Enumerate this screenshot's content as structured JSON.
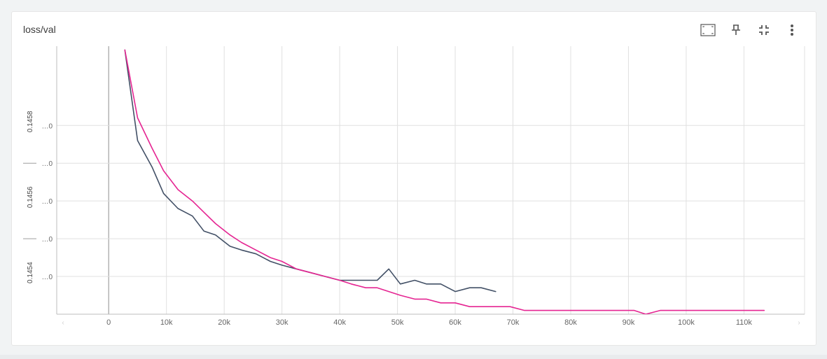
{
  "card": {
    "title": "loss/val",
    "tools": [
      "fit-domain-icon",
      "pin-icon",
      "collapse-icon",
      "more-vert-icon"
    ]
  },
  "colors": {
    "series_dark": "#425066",
    "series_pink": "#e52592",
    "grid": "#e0e0e0",
    "axis_text": "#666666"
  },
  "chart_data": {
    "type": "line",
    "title": "loss/val",
    "x_ticks": [
      "0",
      "10k",
      "20k",
      "30k",
      "40k",
      "50k",
      "60k",
      "70k",
      "80k",
      "90k",
      "100k",
      "110k"
    ],
    "x_tick_values": [
      0,
      10000,
      20000,
      30000,
      40000,
      50000,
      60000,
      70000,
      80000,
      90000,
      100000,
      110000
    ],
    "xlim": [
      -9000,
      120500
    ],
    "ylim": [
      0.14528,
      0.14599
    ],
    "y_ticks": [
      {
        "value": 0.14538,
        "label": "...0"
      },
      {
        "value": 0.14548,
        "label": "...0"
      },
      {
        "value": 0.14558,
        "label": "...0"
      },
      {
        "value": 0.14568,
        "label": "...0"
      },
      {
        "value": 0.14578,
        "label": "...0"
      }
    ],
    "y_major_labels": [
      {
        "value": 0.14539,
        "label": "0.1454"
      },
      {
        "value": 0.14559,
        "label": "0.1456"
      },
      {
        "value": 0.14579,
        "label": "0.1458"
      }
    ],
    "grid": true,
    "series": [
      {
        "color": "#425066",
        "x": [
          2800,
          5000,
          7500,
          9500,
          12000,
          14500,
          16500,
          18500,
          21000,
          23000,
          25500,
          28000,
          30000,
          32500,
          35000,
          37500,
          40000,
          42000,
          44500,
          46500,
          48500,
          50500,
          53000,
          55000,
          57500,
          60000,
          62500,
          64500,
          67000
        ],
        "y": [
          0.14598,
          0.14574,
          0.14567,
          0.1456,
          0.14556,
          0.14554,
          0.1455,
          0.14549,
          0.14546,
          0.14545,
          0.14544,
          0.14542,
          0.14541,
          0.1454,
          0.14539,
          0.14538,
          0.14537,
          0.14537,
          0.14537,
          0.14537,
          0.1454,
          0.14536,
          0.14537,
          0.14536,
          0.14536,
          0.14534,
          0.14535,
          0.14535,
          0.14534
        ]
      },
      {
        "color": "#e52592",
        "x": [
          2800,
          5000,
          7500,
          9500,
          12000,
          14500,
          16500,
          18500,
          21000,
          23000,
          25500,
          28000,
          30000,
          32500,
          35000,
          37500,
          40000,
          42000,
          44500,
          46500,
          48500,
          50500,
          53000,
          55000,
          57500,
          60000,
          62500,
          64500,
          67000,
          69500,
          72000,
          74500,
          76500,
          79000,
          81500,
          84000,
          86500,
          88500,
          91000,
          93000,
          95500,
          97500,
          100000,
          102000,
          104500,
          106500,
          109000,
          111000,
          113500
        ],
        "y": [
          0.14598,
          0.1458,
          0.14572,
          0.14566,
          0.14561,
          0.14558,
          0.14555,
          0.14552,
          0.14549,
          0.14547,
          0.14545,
          0.14543,
          0.14542,
          0.1454,
          0.14539,
          0.14538,
          0.14537,
          0.14536,
          0.14535,
          0.14535,
          0.14534,
          0.14533,
          0.14532,
          0.14532,
          0.14531,
          0.14531,
          0.1453,
          0.1453,
          0.1453,
          0.1453,
          0.14529,
          0.14529,
          0.14529,
          0.14529,
          0.14529,
          0.14529,
          0.14529,
          0.14529,
          0.14529,
          0.14528,
          0.14529,
          0.14529,
          0.14529,
          0.14529,
          0.14529,
          0.14529,
          0.14529,
          0.14529,
          0.14529
        ]
      }
    ]
  }
}
